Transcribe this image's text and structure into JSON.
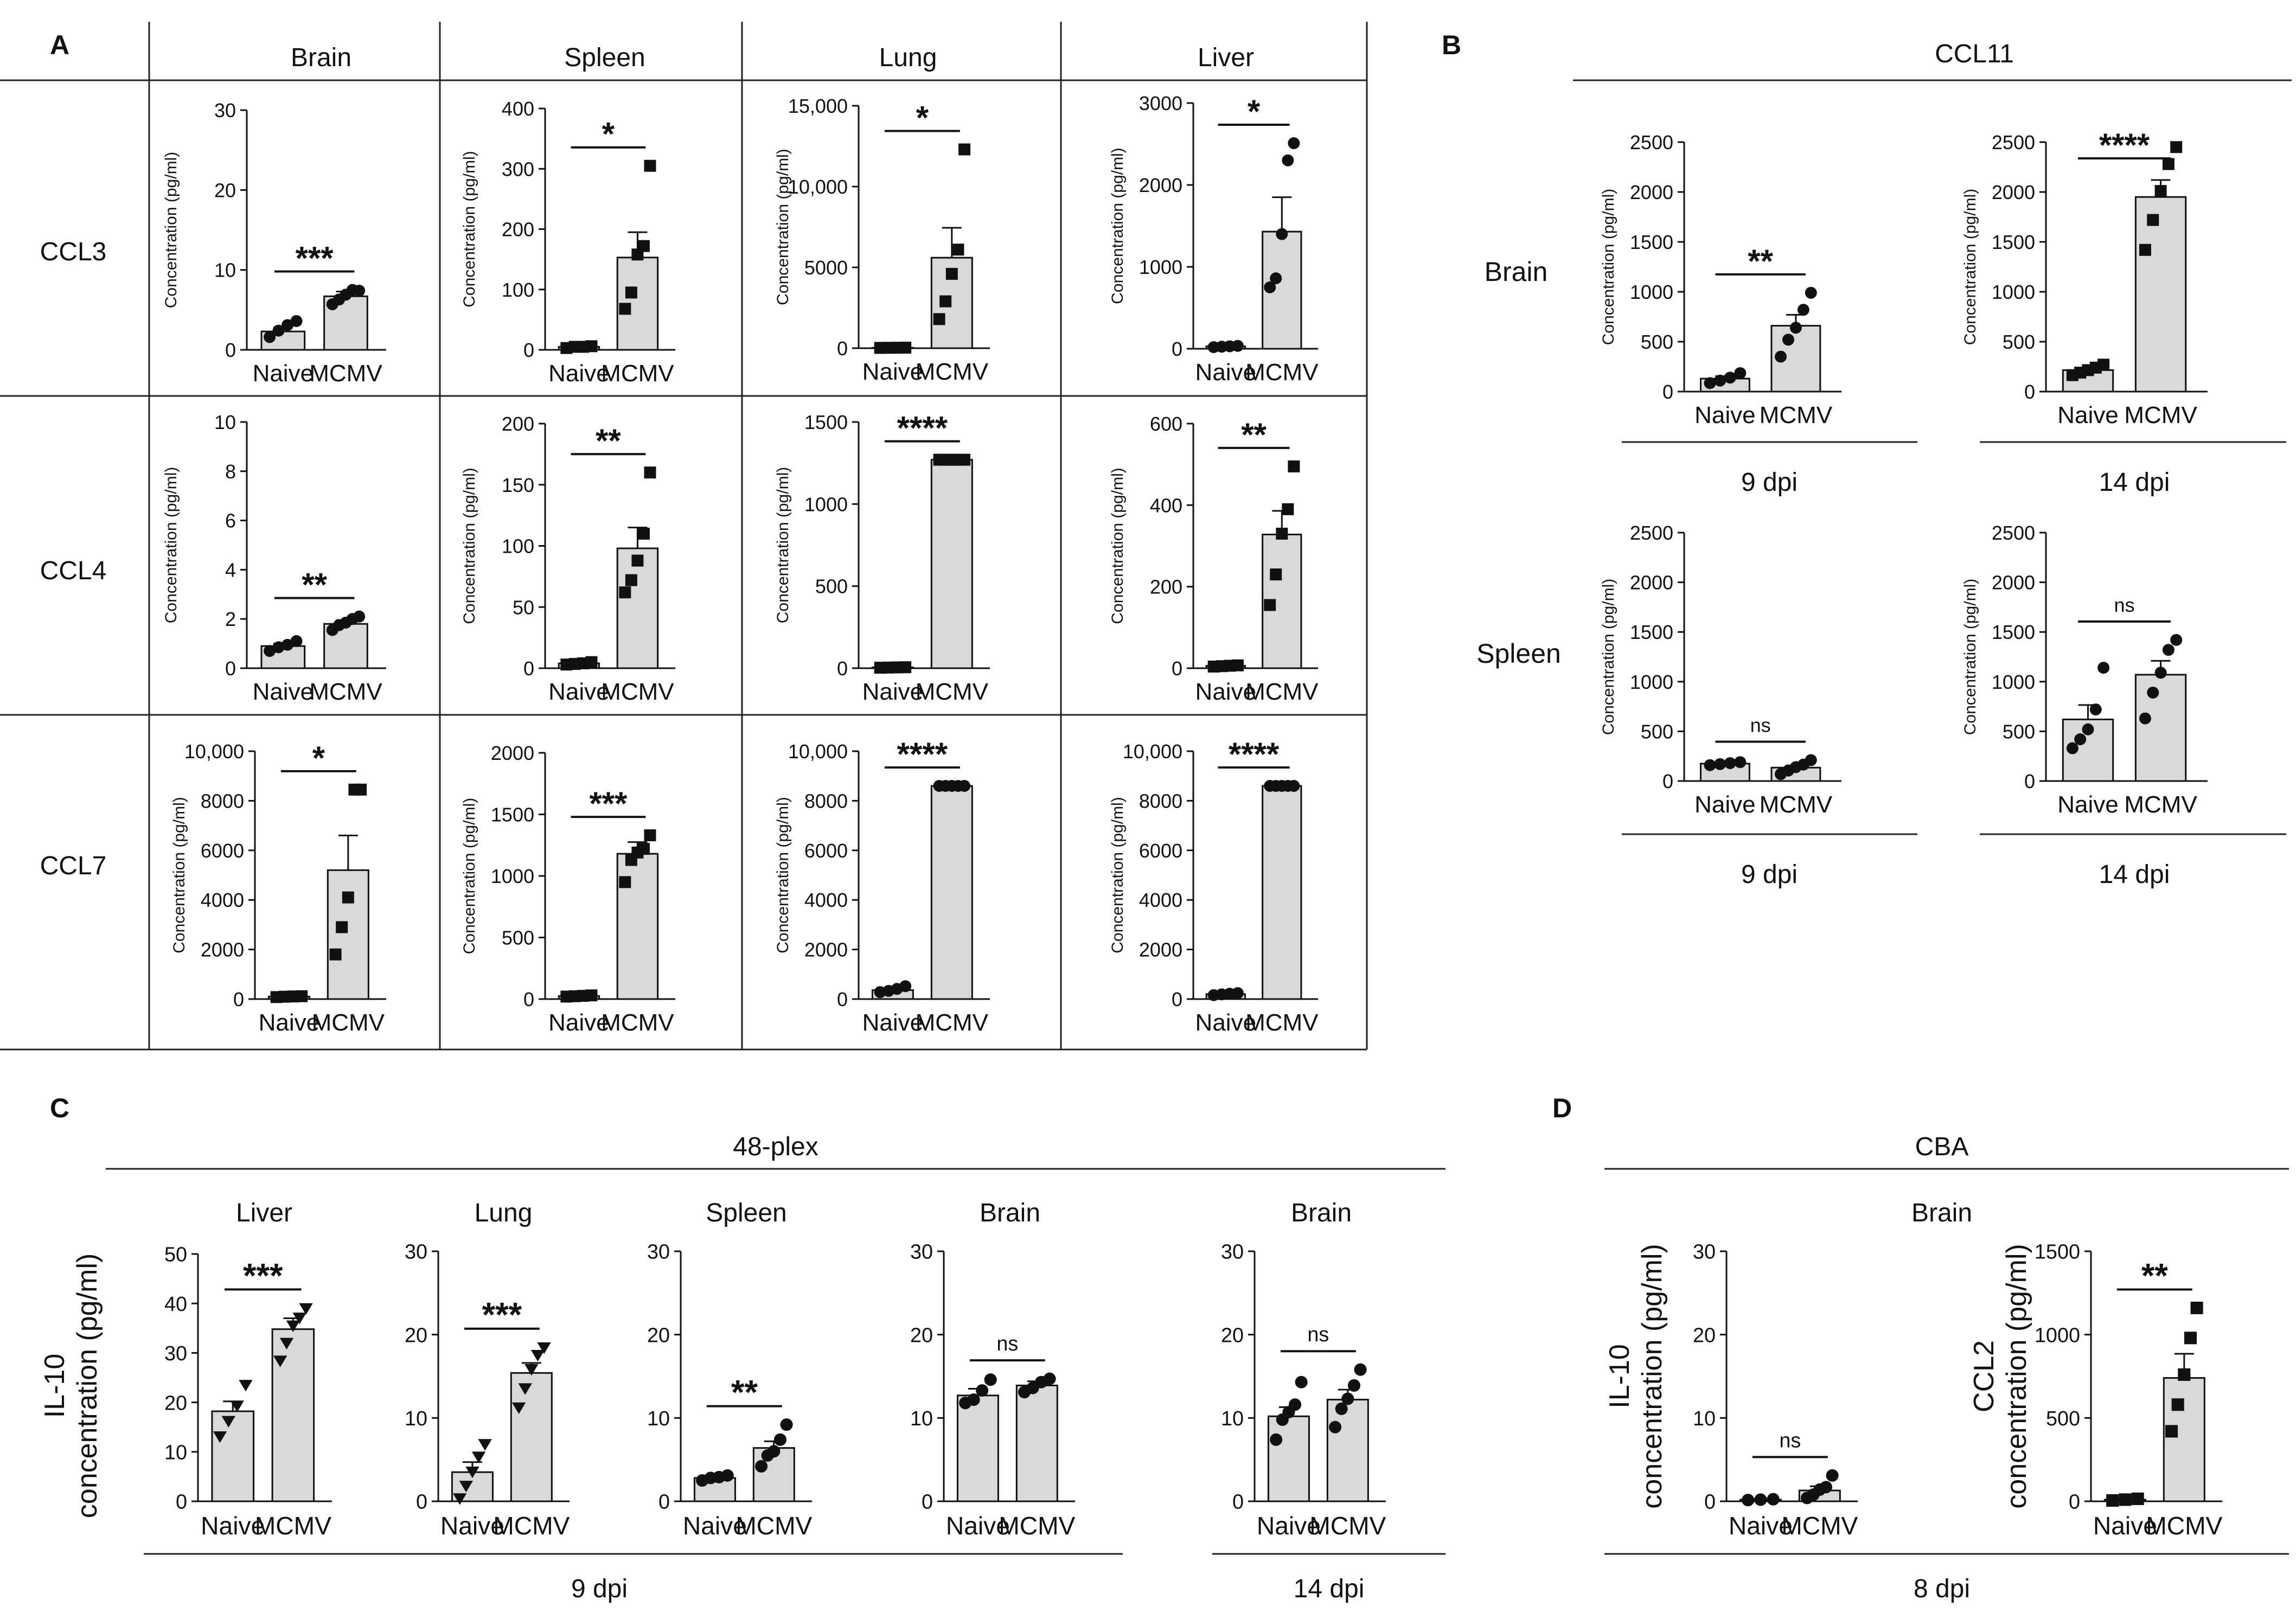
{
  "panel_letters": {
    "a": "A",
    "b": "B",
    "c": "C",
    "d": "D"
  },
  "panel_a": {
    "columns": [
      "Brain",
      "Spleen",
      "Lung",
      "Liver"
    ],
    "rows": [
      "CCL3",
      "CCL4",
      "CCL7"
    ]
  },
  "panel_b": {
    "title": "CCL11",
    "rows": [
      "Brain",
      "Spleen"
    ],
    "timepoints": [
      "9 dpi",
      "14 dpi"
    ]
  },
  "panel_c": {
    "title": "48-plex",
    "columns": [
      "Liver",
      "Lung",
      "Spleen",
      "Brain",
      "Brain"
    ],
    "ylabel_line1": "IL-10",
    "ylabel_line2": "concentration (pg/ml)",
    "timepoints": [
      "9 dpi",
      "14 dpi"
    ]
  },
  "panel_d": {
    "title": "CBA",
    "subtitle": "Brain",
    "timepoint": "8 dpi"
  },
  "chart_data": [
    {
      "id": "a_ccl3_brain",
      "type": "bar",
      "categories": [
        "Naive",
        "MCMV"
      ],
      "values": [
        2.3,
        6.7
      ],
      "errors": [
        0.5,
        0.6
      ],
      "points": [
        [
          1.6,
          2.4,
          3.1,
          3.6
        ],
        [
          5.7,
          6.3,
          6.9,
          7.5,
          7.4
        ]
      ],
      "marker": "circle",
      "yticks": [
        0,
        10,
        20,
        30
      ],
      "ylim": [
        0,
        30
      ],
      "ylabel": "Concentration (pg/ml)",
      "sig": "***"
    },
    {
      "id": "a_ccl3_spleen",
      "type": "bar",
      "categories": [
        "Naive",
        "MCMV"
      ],
      "values": [
        5,
        153
      ],
      "errors": [
        1,
        42
      ],
      "points": [
        [
          3,
          5,
          5,
          6
        ],
        [
          68,
          95,
          158,
          172,
          305
        ]
      ],
      "marker": "square",
      "yticks": [
        0,
        100,
        200,
        300,
        400
      ],
      "ylim": [
        0,
        400
      ],
      "ylabel": "Concentration (pg/ml)",
      "sig": "*"
    },
    {
      "id": "a_ccl3_lung",
      "type": "bar",
      "categories": [
        "Naive",
        "MCMV"
      ],
      "values": [
        30,
        5600
      ],
      "errors": [
        10,
        1850
      ],
      "points": [
        [
          20,
          25,
          30,
          35
        ],
        [
          1800,
          2900,
          4600,
          6100,
          12300
        ]
      ],
      "marker": "square",
      "yticks": [
        0,
        5000,
        10000,
        15000
      ],
      "yticklabels": [
        "0",
        "5000",
        "10,000",
        "15,000"
      ],
      "ylim": [
        0,
        15000
      ],
      "ylabel": "Concentration (pg/ml)",
      "sig": "*"
    },
    {
      "id": "a_ccl3_liver",
      "type": "bar",
      "categories": [
        "Naive",
        "MCMV"
      ],
      "values": [
        30,
        1430
      ],
      "errors": [
        8,
        420
      ],
      "points": [
        [
          20,
          25,
          30,
          35
        ],
        [
          750,
          860,
          1400,
          2300,
          2510
        ]
      ],
      "marker": "circle",
      "yticks": [
        0,
        1000,
        2000,
        3000
      ],
      "ylim": [
        0,
        3000
      ],
      "ylabel": "Concentration (pg/ml)",
      "sig": "*"
    },
    {
      "id": "a_ccl4_brain",
      "type": "bar",
      "categories": [
        "Naive",
        "MCMV"
      ],
      "values": [
        0.9,
        1.8
      ],
      "errors": [
        0.1,
        0.15
      ],
      "points": [
        [
          0.7,
          0.85,
          0.95,
          1.1
        ],
        [
          1.55,
          1.75,
          1.85,
          2.0,
          2.1
        ]
      ],
      "marker": "circle",
      "yticks": [
        0,
        2,
        4,
        6,
        8,
        10
      ],
      "ylim": [
        0,
        10
      ],
      "ylabel": "Concentration (pg/ml)",
      "sig": "**"
    },
    {
      "id": "a_ccl4_spleen",
      "type": "bar",
      "categories": [
        "Naive",
        "MCMV"
      ],
      "values": [
        4,
        98
      ],
      "errors": [
        1,
        17
      ],
      "points": [
        [
          3,
          3.5,
          4,
          5
        ],
        [
          62,
          72,
          88,
          110,
          160
        ]
      ],
      "marker": "square",
      "yticks": [
        0,
        50,
        100,
        150,
        200
      ],
      "ylim": [
        0,
        200
      ],
      "ylabel": "Concentration (pg/ml)",
      "sig": "**"
    },
    {
      "id": "a_ccl4_lung",
      "type": "bar",
      "categories": [
        "Naive",
        "MCMV"
      ],
      "values": [
        5,
        1270
      ],
      "errors": [
        1,
        0
      ],
      "points": [
        [
          3,
          4,
          5,
          6
        ],
        [
          1270,
          1270,
          1270,
          1270,
          1270
        ]
      ],
      "marker": "square",
      "yticks": [
        0,
        500,
        1000,
        1500
      ],
      "ylim": [
        0,
        1500
      ],
      "ylabel": "Concentration (pg/ml)",
      "sig": "****"
    },
    {
      "id": "a_ccl4_liver",
      "type": "bar",
      "categories": [
        "Naive",
        "MCMV"
      ],
      "values": [
        6,
        328
      ],
      "errors": [
        1,
        58
      ],
      "points": [
        [
          4,
          5,
          6,
          7
        ],
        [
          155,
          230,
          330,
          390,
          495
        ]
      ],
      "marker": "square",
      "yticks": [
        0,
        200,
        400,
        600
      ],
      "ylim": [
        0,
        600
      ],
      "ylabel": "Concentration (pg/ml)",
      "sig": "**"
    },
    {
      "id": "a_ccl7_brain",
      "type": "bar",
      "categories": [
        "Naive",
        "MCMV"
      ],
      "values": [
        100,
        5200
      ],
      "errors": [
        20,
        1400
      ],
      "points": [
        [
          80,
          95,
          105,
          115
        ],
        [
          1800,
          2900,
          4100,
          8450,
          8450
        ]
      ],
      "marker": "square",
      "yticks": [
        0,
        2000,
        4000,
        6000,
        8000,
        10000
      ],
      "yticklabels": [
        "0",
        "2000",
        "4000",
        "6000",
        "8000",
        "10,000"
      ],
      "ylim": [
        0,
        10000
      ],
      "ylabel": "Concentration (pg/ml)",
      "sig": "*"
    },
    {
      "id": "a_ccl7_spleen",
      "type": "bar",
      "categories": [
        "Naive",
        "MCMV"
      ],
      "values": [
        25,
        1180
      ],
      "errors": [
        3,
        95
      ],
      "points": [
        [
          20,
          23,
          26,
          30
        ],
        [
          950,
          1130,
          1190,
          1220,
          1330
        ]
      ],
      "marker": "square",
      "yticks": [
        0,
        500,
        1000,
        1500,
        2000
      ],
      "ylim": [
        0,
        2000
      ],
      "ylabel": "Concentration (pg/ml)",
      "sig": "***"
    },
    {
      "id": "a_ccl7_lung",
      "type": "bar",
      "categories": [
        "Naive",
        "MCMV"
      ],
      "values": [
        360,
        8600
      ],
      "errors": [
        60,
        0
      ],
      "points": [
        [
          280,
          330,
          410,
          520
        ],
        [
          8600,
          8600,
          8600,
          8600,
          8600
        ]
      ],
      "marker": "circle",
      "yticks": [
        0,
        2000,
        4000,
        6000,
        8000,
        10000
      ],
      "yticklabels": [
        "0",
        "2000",
        "4000",
        "6000",
        "8000",
        "10,000"
      ],
      "ylim": [
        0,
        10000
      ],
      "ylabel": "Concentration (pg/ml)",
      "sig": "****"
    },
    {
      "id": "a_ccl7_liver",
      "type": "bar",
      "categories": [
        "Naive",
        "MCMV"
      ],
      "values": [
        200,
        8600
      ],
      "errors": [
        30,
        0
      ],
      "points": [
        [
          160,
          190,
          215,
          240
        ],
        [
          8600,
          8600,
          8600,
          8600,
          8600
        ]
      ],
      "marker": "circle",
      "yticks": [
        0,
        2000,
        4000,
        6000,
        8000,
        10000
      ],
      "yticklabels": [
        "0",
        "2000",
        "4000",
        "6000",
        "8000",
        "10,000"
      ],
      "ylim": [
        0,
        10000
      ],
      "ylabel": "Concentration (pg/ml)",
      "sig": "****"
    },
    {
      "id": "b_brain_9dpi",
      "type": "bar",
      "categories": [
        "Naive",
        "MCMV"
      ],
      "values": [
        130,
        660
      ],
      "errors": [
        25,
        110
      ],
      "points": [
        [
          85,
          110,
          140,
          185
        ],
        [
          350,
          520,
          640,
          820,
          990
        ]
      ],
      "marker": "circle",
      "yticks": [
        0,
        500,
        1000,
        1500,
        2000,
        2500
      ],
      "ylim": [
        0,
        2500
      ],
      "ylabel": "Concentration (pg/ml)",
      "sig": "**"
    },
    {
      "id": "b_brain_14dpi",
      "type": "bar",
      "categories": [
        "Naive",
        "MCMV"
      ],
      "values": [
        215,
        1950
      ],
      "errors": [
        20,
        170
      ],
      "points": [
        [
          165,
          190,
          215,
          240,
          270
        ],
        [
          1420,
          1720,
          2010,
          2280,
          2450
        ]
      ],
      "marker": "square",
      "yticks": [
        0,
        500,
        1000,
        1500,
        2000,
        2500
      ],
      "ylim": [
        0,
        2500
      ],
      "ylabel": "Concentration (pg/ml)",
      "sig": "****"
    },
    {
      "id": "b_spleen_9dpi",
      "type": "bar",
      "categories": [
        "Naive",
        "MCMV"
      ],
      "values": [
        175,
        135
      ],
      "errors": [
        8,
        22
      ],
      "points": [
        [
          160,
          170,
          180,
          190
        ],
        [
          70,
          105,
          140,
          165,
          210
        ]
      ],
      "marker": "circle",
      "yticks": [
        0,
        500,
        1000,
        1500,
        2000,
        2500
      ],
      "ylim": [
        0,
        2500
      ],
      "ylabel": "Concentration (pg/ml)",
      "sig": "ns"
    },
    {
      "id": "b_spleen_14dpi",
      "type": "bar",
      "categories": [
        "Naive",
        "MCMV"
      ],
      "values": [
        620,
        1070
      ],
      "errors": [
        145,
        140
      ],
      "points": [
        [
          330,
          420,
          520,
          720,
          1140
        ],
        [
          630,
          890,
          1090,
          1320,
          1420
        ]
      ],
      "marker": "circle",
      "yticks": [
        0,
        500,
        1000,
        1500,
        2000,
        2500
      ],
      "ylim": [
        0,
        2500
      ],
      "ylabel": "Concentration (pg/ml)",
      "sig": "ns"
    },
    {
      "id": "c_liver_9dpi",
      "type": "bar",
      "categories": [
        "Naive",
        "MCMV"
      ],
      "values": [
        18.2,
        34.8
      ],
      "errors": [
        2,
        2.2
      ],
      "points": [
        [
          13.2,
          16.3,
          19.4,
          23.6
        ],
        [
          28.5,
          32.1,
          35.6,
          37.2,
          39.1
        ]
      ],
      "marker": "triangle",
      "yticks": [
        0,
        10,
        20,
        30,
        40,
        50
      ],
      "ylim": [
        0,
        50
      ],
      "sig": "***"
    },
    {
      "id": "c_lung_9dpi",
      "type": "bar",
      "categories": [
        "Naive",
        "MCMV"
      ],
      "values": [
        3.5,
        15.4
      ],
      "errors": [
        1.2,
        1.2
      ],
      "points": [
        [
          0.4,
          1.9,
          3.6,
          5.4,
          6.9
        ],
        [
          11.3,
          13.6,
          15.9,
          17.6,
          18.5
        ]
      ],
      "marker": "triangle",
      "yticks": [
        0,
        10,
        20,
        30
      ],
      "ylim": [
        0,
        30
      ],
      "sig": "***"
    },
    {
      "id": "c_spleen_9dpi",
      "type": "bar",
      "categories": [
        "Naive",
        "MCMV"
      ],
      "values": [
        2.8,
        6.4
      ],
      "errors": [
        0.2,
        0.8
      ],
      "points": [
        [
          2.5,
          2.8,
          2.9,
          3.1
        ],
        [
          4.2,
          5.5,
          6.0,
          7.4,
          9.2
        ]
      ],
      "marker": "circle",
      "yticks": [
        0,
        10,
        20,
        30
      ],
      "ylim": [
        0,
        30
      ],
      "sig": "**"
    },
    {
      "id": "c_brain_9dpi",
      "type": "bar",
      "categories": [
        "Naive",
        "MCMV"
      ],
      "values": [
        12.7,
        13.9
      ],
      "errors": [
        0.8,
        0.5
      ],
      "points": [
        [
          11.8,
          12.2,
          13.3,
          14.6
        ],
        [
          13.1,
          13.6,
          14.3,
          14.7
        ]
      ],
      "marker": "circle",
      "yticks": [
        0,
        10,
        20,
        30
      ],
      "ylim": [
        0,
        30
      ],
      "sig": "ns"
    },
    {
      "id": "c_brain_14dpi",
      "type": "bar",
      "categories": [
        "Naive",
        "MCMV"
      ],
      "values": [
        10.2,
        12.2
      ],
      "errors": [
        1.1,
        1.2
      ],
      "points": [
        [
          7.4,
          9.8,
          10.7,
          11.6,
          14.3
        ],
        [
          8.9,
          11.1,
          12.3,
          13.9,
          15.8
        ]
      ],
      "marker": "circle",
      "yticks": [
        0,
        10,
        20,
        30
      ],
      "ylim": [
        0,
        30
      ],
      "sig": "ns"
    },
    {
      "id": "d_il10",
      "type": "bar",
      "categories": [
        "Naive",
        "MCMV"
      ],
      "values": [
        0.2,
        1.3
      ],
      "errors": [
        0.1,
        0.5
      ],
      "points": [
        [
          0.15,
          0.2,
          0.25
        ],
        [
          0.4,
          0.8,
          1.4,
          1.7,
          3.1
        ]
      ],
      "marker": "circle",
      "yticks": [
        0,
        10,
        20,
        30
      ],
      "ylim": [
        0,
        30
      ],
      "ylabel_line1": "IL-10",
      "ylabel_line2": "concentration (pg/ml)",
      "sig": "ns"
    },
    {
      "id": "d_ccl2",
      "type": "bar",
      "categories": [
        "Naive",
        "MCMV"
      ],
      "values": [
        10,
        740
      ],
      "errors": [
        3,
        145
      ],
      "points": [
        [
          5,
          10,
          15
        ],
        [
          420,
          580,
          760,
          980,
          1160
        ]
      ],
      "marker": "square",
      "yticks": [
        0,
        500,
        1000,
        1500
      ],
      "ylim": [
        0,
        1500
      ],
      "ylabel_line1": "CCL2",
      "ylabel_line2": "concentration (pg/ml)",
      "sig": "**"
    }
  ]
}
